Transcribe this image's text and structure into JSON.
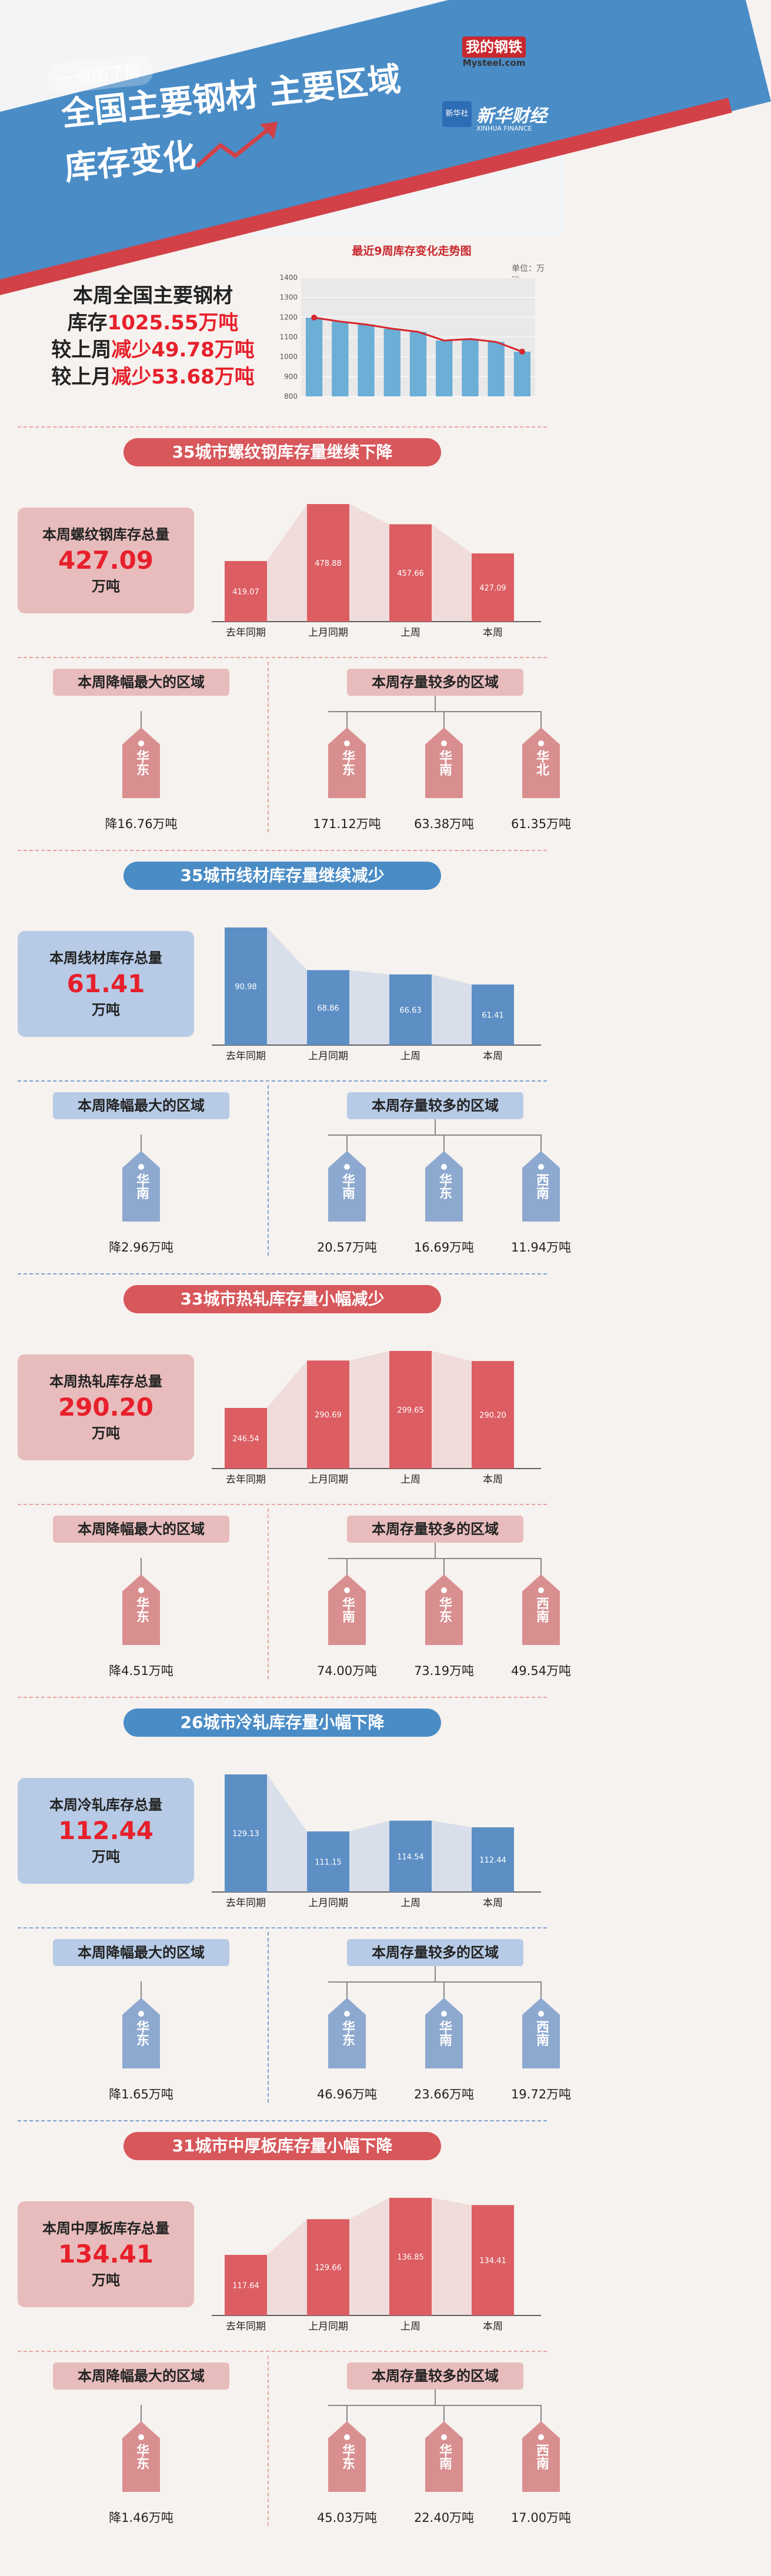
{
  "header": {
    "tag": "一张图了解",
    "title_line1": "全国主要钢材 主要区域",
    "title_line2": "库存变化",
    "logo_mysteel_cn": "我的钢铁",
    "logo_mysteel_en": "Mysteel.com",
    "logo_xinhua_badge": "新华社",
    "logo_xinhua_name": "新华财经",
    "logo_xinhua_en": "XINHUA FINANCE"
  },
  "summary": {
    "line1": "本周全国主要钢材",
    "line2_a": "库存",
    "line2_b": "1025.55万吨",
    "line3_a": "较上周",
    "line3_b": "减少49.78万吨",
    "line4_a": "较上月",
    "line4_b": "减少53.68万吨"
  },
  "chart_data": [
    {
      "type": "line",
      "title": "最近9周库存变化走势图",
      "unit": "单位：万吨",
      "yticks": [
        800,
        900,
        1000,
        1100,
        1200,
        1300,
        1400
      ],
      "ylim": [
        800,
        1400
      ],
      "values": [
        1198,
        1178,
        1163,
        1142,
        1126,
        1082,
        1090,
        1075,
        1026
      ],
      "colors": {
        "bar": "#6baed6",
        "line": "#d7262d"
      }
    },
    {
      "type": "bar",
      "categories": [
        "去年同期",
        "上月同期",
        "上周",
        "本周"
      ],
      "values": [
        419.07,
        478.88,
        457.66,
        427.09
      ]
    },
    {
      "type": "bar",
      "categories": [
        "去年同期",
        "上月同期",
        "上周",
        "本周"
      ],
      "values": [
        90.98,
        68.86,
        66.63,
        61.41
      ]
    },
    {
      "type": "bar",
      "categories": [
        "去年同期",
        "上月同期",
        "上周",
        "本周"
      ],
      "values": [
        246.54,
        290.69,
        299.65,
        290.2
      ]
    },
    {
      "type": "bar",
      "categories": [
        "去年同期",
        "上月同期",
        "上周",
        "本周"
      ],
      "values": [
        129.13,
        111.15,
        114.54,
        112.44
      ]
    },
    {
      "type": "bar",
      "categories": [
        "去年同期",
        "上月同期",
        "上周",
        "本周"
      ],
      "values": [
        117.64,
        129.66,
        136.85,
        134.41
      ]
    }
  ],
  "sections": [
    {
      "theme": "red",
      "title": "35城市螺纹钢库存量继续下降",
      "stock_label": "本周螺纹钢库存总量",
      "stock_value": "427.09",
      "stock_unit": "万吨",
      "bar_labels": [
        "419.07",
        "478.88",
        "457.66",
        "427.09"
      ],
      "drop_title": "本周降幅最大的区域",
      "drop_region": "华东",
      "drop_amount": "降16.76万吨",
      "top_title": "本周存量较多的区域",
      "top_regions": [
        {
          "name": "华东",
          "amount": "171.12万吨"
        },
        {
          "name": "华南",
          "amount": "63.38万吨"
        },
        {
          "name": "华北",
          "amount": "61.35万吨"
        }
      ]
    },
    {
      "theme": "blue",
      "title": "35城市线材库存量继续减少",
      "stock_label": "本周线材库存总量",
      "stock_value": "61.41",
      "stock_unit": "万吨",
      "bar_labels": [
        "90.98",
        "68.86",
        "66.63",
        "61.41"
      ],
      "drop_title": "本周降幅最大的区域",
      "drop_region": "华南",
      "drop_amount": "降2.96万吨",
      "top_title": "本周存量较多的区域",
      "top_regions": [
        {
          "name": "华南",
          "amount": "20.57万吨"
        },
        {
          "name": "华东",
          "amount": "16.69万吨"
        },
        {
          "name": "西南",
          "amount": "11.94万吨"
        }
      ]
    },
    {
      "theme": "red",
      "title": "33城市热轧库存量小幅减少",
      "stock_label": "本周热轧库存总量",
      "stock_value": "290.20",
      "stock_unit": "万吨",
      "bar_labels": [
        "246.54",
        "290.69",
        "299.65",
        "290.20"
      ],
      "drop_title": "本周降幅最大的区域",
      "drop_region": "华东",
      "drop_amount": "降4.51万吨",
      "top_title": "本周存量较多的区域",
      "top_regions": [
        {
          "name": "华南",
          "amount": "74.00万吨"
        },
        {
          "name": "华东",
          "amount": "73.19万吨"
        },
        {
          "name": "西南",
          "amount": "49.54万吨"
        }
      ]
    },
    {
      "theme": "blue",
      "title": "26城市冷轧库存量小幅下降",
      "stock_label": "本周冷轧库存总量",
      "stock_value": "112.44",
      "stock_unit": "万吨",
      "bar_labels": [
        "129.13",
        "111.15",
        "114.54",
        "112.44"
      ],
      "drop_title": "本周降幅最大的区域",
      "drop_region": "华东",
      "drop_amount": "降1.65万吨",
      "top_title": "本周存量较多的区域",
      "top_regions": [
        {
          "name": "华东",
          "amount": "46.96万吨"
        },
        {
          "name": "华南",
          "amount": "23.66万吨"
        },
        {
          "name": "西南",
          "amount": "19.72万吨"
        }
      ]
    },
    {
      "theme": "red",
      "title": "31城市中厚板库存量小幅下降",
      "stock_label": "本周中厚板库存总量",
      "stock_value": "134.41",
      "stock_unit": "万吨",
      "bar_labels": [
        "117.64",
        "129.66",
        "136.85",
        "134.41"
      ],
      "drop_title": "本周降幅最大的区域",
      "drop_region": "华东",
      "drop_amount": "降1.46万吨",
      "top_title": "本周存量较多的区域",
      "top_regions": [
        {
          "name": "华东",
          "amount": "45.03万吨"
        },
        {
          "name": "华南",
          "amount": "22.40万吨"
        },
        {
          "name": "西南",
          "amount": "17.00万吨"
        }
      ]
    }
  ]
}
